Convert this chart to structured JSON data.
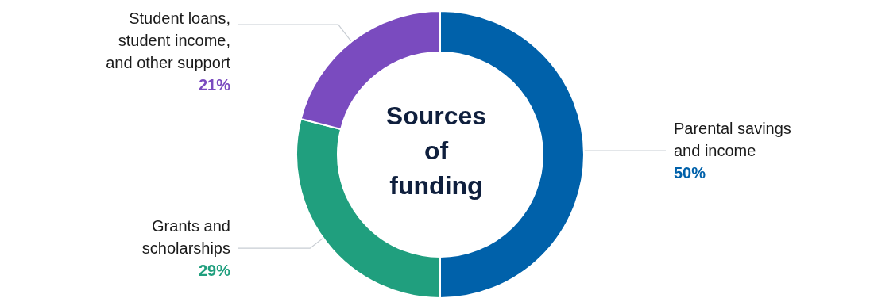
{
  "chart_data": {
    "type": "donut",
    "title": "Sources of funding",
    "categories": [
      "Parental savings and income",
      "Grants and scholarships",
      "Student loans, student income, and other support"
    ],
    "values": [
      50,
      29,
      21
    ],
    "value_labels": [
      "50%",
      "29%",
      "21%"
    ],
    "colors": [
      "#0061aa",
      "#209f7e",
      "#7a4bbf"
    ]
  }
}
